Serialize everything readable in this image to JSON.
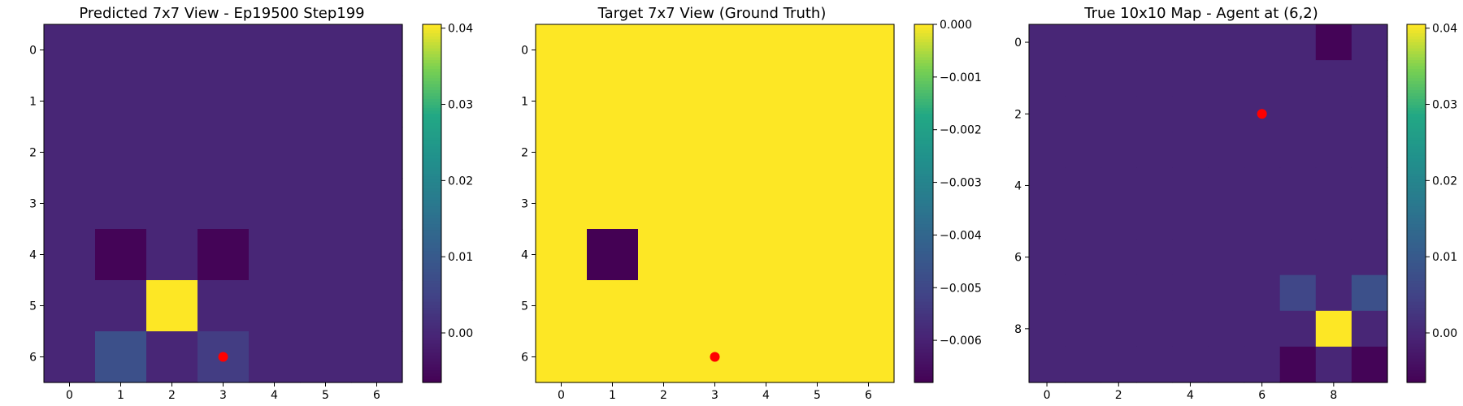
{
  "chart_data": [
    {
      "type": "heatmap",
      "title": "Predicted 7x7 View - Ep19500 Step199",
      "x_ticks": [
        0,
        1,
        2,
        3,
        4,
        5,
        6
      ],
      "y_ticks": [
        0,
        1,
        2,
        3,
        4,
        5,
        6
      ],
      "colorbar_ticks": [
        "0.04",
        "0.03",
        "0.02",
        "0.01",
        "0.00"
      ],
      "colorbar_range": [
        -0.0065,
        0.0405
      ],
      "grid": false,
      "values": [
        [
          0.0,
          0.0,
          0.0,
          0.0,
          0.0,
          0.0,
          0.0
        ],
        [
          0.0,
          0.0,
          0.0,
          0.0,
          0.0,
          0.0,
          0.0
        ],
        [
          0.0,
          0.0,
          0.0,
          0.0,
          0.0,
          0.0,
          0.0
        ],
        [
          0.0,
          0.0,
          0.0,
          0.0,
          0.0,
          0.0,
          0.0
        ],
        [
          0.0,
          -0.006,
          0.0,
          -0.006,
          0.0,
          0.0,
          0.0
        ],
        [
          0.0,
          0.0,
          0.0405,
          0.0,
          0.0,
          0.0,
          0.0
        ],
        [
          0.0,
          0.008,
          0.0,
          0.004,
          0.0,
          0.0,
          0.0
        ]
      ],
      "marker": {
        "x": 3,
        "y": 6,
        "color": "#ff0000"
      }
    },
    {
      "type": "heatmap",
      "title": "Target 7x7 View (Ground Truth)",
      "x_ticks": [
        0,
        1,
        2,
        3,
        4,
        5,
        6
      ],
      "y_ticks": [
        0,
        1,
        2,
        3,
        4,
        5,
        6
      ],
      "colorbar_ticks": [
        "0.000",
        "−0.001",
        "−0.002",
        "−0.003",
        "−0.004",
        "−0.005",
        "−0.006"
      ],
      "colorbar_range": [
        -0.0068,
        0.0
      ],
      "grid": false,
      "values": [
        [
          0,
          0,
          0,
          0,
          0,
          0,
          0
        ],
        [
          0,
          0,
          0,
          0,
          0,
          0,
          0
        ],
        [
          0,
          0,
          0,
          0,
          0,
          0,
          0
        ],
        [
          0,
          0,
          0,
          0,
          0,
          0,
          0
        ],
        [
          0,
          -0.0068,
          0,
          0,
          0,
          0,
          0
        ],
        [
          0,
          0,
          0,
          0,
          0,
          0,
          0
        ],
        [
          0,
          0,
          0,
          0,
          0,
          0,
          0
        ]
      ],
      "marker": {
        "x": 3,
        "y": 6,
        "color": "#ff0000"
      }
    },
    {
      "type": "heatmap",
      "title": "True 10x10 Map - Agent at (6,2)",
      "x_ticks": [
        0,
        2,
        4,
        6,
        8
      ],
      "y_ticks": [
        0,
        2,
        4,
        6,
        8
      ],
      "colorbar_ticks": [
        "0.04",
        "0.03",
        "0.02",
        "0.01",
        "0.00"
      ],
      "colorbar_range": [
        -0.0065,
        0.0405
      ],
      "grid": false,
      "values": [
        [
          0,
          0,
          0,
          0,
          0,
          0,
          0,
          0,
          -0.006,
          0
        ],
        [
          0,
          0,
          0,
          0,
          0,
          0,
          0,
          0,
          0,
          0
        ],
        [
          0,
          0,
          0,
          0,
          0,
          0,
          0,
          0,
          0,
          0
        ],
        [
          0,
          0,
          0,
          0,
          0,
          0,
          0,
          0,
          0,
          0
        ],
        [
          0,
          0,
          0,
          0,
          0,
          0,
          0,
          0,
          0,
          0
        ],
        [
          0,
          0,
          0,
          0,
          0,
          0,
          0,
          0,
          0,
          0
        ],
        [
          0,
          0,
          0,
          0,
          0,
          0,
          0,
          0,
          0,
          0
        ],
        [
          0,
          0,
          0,
          0,
          0,
          0,
          0,
          0.006,
          0,
          0.008
        ],
        [
          0,
          0,
          0,
          0,
          0,
          0,
          0,
          0,
          0.0405,
          0
        ],
        [
          0,
          0,
          0,
          0,
          0,
          0,
          0,
          -0.006,
          0,
          -0.006
        ]
      ],
      "marker": {
        "x": 6,
        "y": 2,
        "color": "#ff0000"
      }
    }
  ]
}
